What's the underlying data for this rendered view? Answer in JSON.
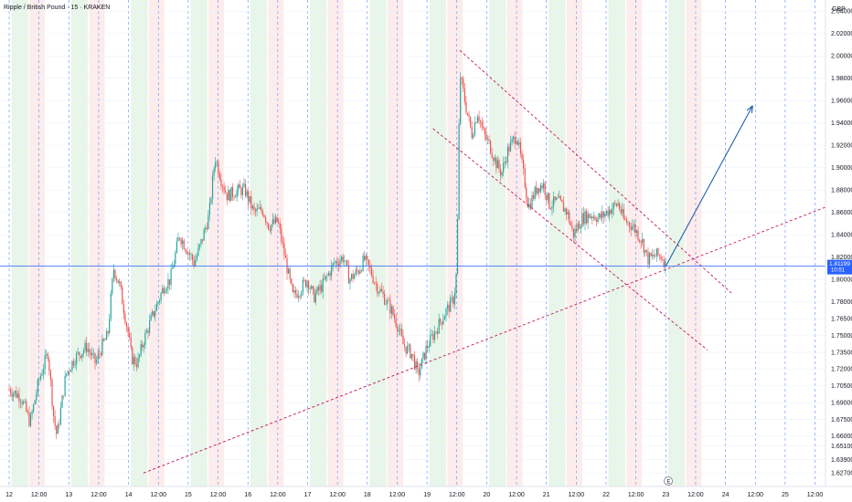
{
  "header": {
    "title": "Ripple / British Pound · 15 · KRAKEN",
    "currency": "GBP"
  },
  "price_badge": {
    "price": "1.81199",
    "countdown": "10:51",
    "color": "#2962ff"
  },
  "event_marker": "E",
  "colors": {
    "up": "#26a69a",
    "down": "#ef5350",
    "trendline": "#c2185b",
    "arrow": "#1f5faa",
    "grid_day": "#2962ff",
    "session_green": "#e8f5e9",
    "session_red": "#fdecec"
  },
  "chart_data": {
    "type": "candlestick",
    "title": "Ripple / British Pound · 15 · KRAKEN",
    "x_ticks": [
      "12",
      "12:00",
      "13",
      "12:00",
      "14",
      "12:00",
      "15",
      "12:00",
      "16",
      "12:00",
      "17",
      "12:00",
      "18",
      "12:00",
      "19",
      "12:00",
      "20",
      "12:00",
      "21",
      "12:00",
      "22",
      "12:00",
      "23",
      "12:00",
      "24",
      "12:00",
      "25",
      "12:00"
    ],
    "y_ticks": [
      "2.04000",
      "2.02000",
      "2.00000",
      "1.98000",
      "1.96000",
      "1.94000",
      "1.92000",
      "1.90000",
      "1.88000",
      "1.86000",
      "1.84000",
      "1.82000",
      "1.80000",
      "1.78000",
      "1.76500",
      "1.75000",
      "1.73500",
      "1.72000",
      "1.70500",
      "1.69000",
      "1.67500",
      "1.66000",
      "1.65100",
      "1.63900",
      "1.62700"
    ],
    "ylabel": "GBP",
    "ylim": [
      1.615,
      2.05
    ],
    "xlim_days": [
      0,
      14.6
    ],
    "close_path": [
      [
        0.0,
        1.702
      ],
      [
        0.2,
        1.695
      ],
      [
        0.35,
        1.672
      ],
      [
        0.5,
        1.71
      ],
      [
        0.65,
        1.735
      ],
      [
        0.75,
        1.675
      ],
      [
        0.8,
        1.66
      ],
      [
        0.95,
        1.715
      ],
      [
        1.1,
        1.73
      ],
      [
        1.3,
        1.74
      ],
      [
        1.45,
        1.725
      ],
      [
        1.55,
        1.74
      ],
      [
        1.65,
        1.75
      ],
      [
        1.75,
        1.81
      ],
      [
        1.85,
        1.795
      ],
      [
        2.0,
        1.75
      ],
      [
        2.05,
        1.73
      ],
      [
        2.15,
        1.725
      ],
      [
        2.25,
        1.745
      ],
      [
        2.35,
        1.76
      ],
      [
        2.6,
        1.795
      ],
      [
        2.7,
        1.8
      ],
      [
        2.85,
        1.84
      ],
      [
        2.95,
        1.83
      ],
      [
        3.1,
        1.815
      ],
      [
        3.2,
        1.83
      ],
      [
        3.35,
        1.858
      ],
      [
        3.45,
        1.91
      ],
      [
        3.55,
        1.89
      ],
      [
        3.65,
        1.875
      ],
      [
        3.85,
        1.88
      ],
      [
        3.95,
        1.88
      ],
      [
        4.1,
        1.86
      ],
      [
        4.25,
        1.862
      ],
      [
        4.35,
        1.848
      ],
      [
        4.5,
        1.852
      ],
      [
        4.65,
        1.812
      ],
      [
        4.75,
        1.785
      ],
      [
        4.85,
        1.79
      ],
      [
        5.0,
        1.8
      ],
      [
        5.1,
        1.784
      ],
      [
        5.25,
        1.795
      ],
      [
        5.45,
        1.815
      ],
      [
        5.6,
        1.82
      ],
      [
        5.7,
        1.8
      ],
      [
        5.85,
        1.808
      ],
      [
        5.95,
        1.818
      ],
      [
        6.05,
        1.808
      ],
      [
        6.15,
        1.795
      ],
      [
        6.25,
        1.787
      ],
      [
        6.4,
        1.773
      ],
      [
        6.5,
        1.76
      ],
      [
        6.6,
        1.742
      ],
      [
        6.75,
        1.733
      ],
      [
        6.85,
        1.715
      ],
      [
        7.0,
        1.74
      ],
      [
        7.1,
        1.75
      ],
      [
        7.2,
        1.76
      ],
      [
        7.3,
        1.77
      ],
      [
        7.45,
        1.783
      ],
      [
        7.5,
        1.81
      ],
      [
        7.55,
        1.985
      ],
      [
        7.65,
        1.955
      ],
      [
        7.75,
        1.93
      ],
      [
        7.85,
        1.95
      ],
      [
        7.95,
        1.93
      ],
      [
        8.05,
        1.92
      ],
      [
        8.15,
        1.905
      ],
      [
        8.25,
        1.895
      ],
      [
        8.35,
        1.915
      ],
      [
        8.5,
        1.93
      ],
      [
        8.6,
        1.9
      ],
      [
        8.7,
        1.865
      ],
      [
        8.85,
        1.883
      ],
      [
        8.95,
        1.885
      ],
      [
        9.05,
        1.867
      ],
      [
        9.2,
        1.87
      ],
      [
        9.35,
        1.86
      ],
      [
        9.45,
        1.84
      ],
      [
        9.6,
        1.855
      ],
      [
        9.75,
        1.858
      ],
      [
        9.9,
        1.855
      ],
      [
        10.05,
        1.862
      ],
      [
        10.2,
        1.868
      ],
      [
        10.3,
        1.853
      ],
      [
        10.45,
        1.848
      ],
      [
        10.6,
        1.835
      ],
      [
        10.7,
        1.818
      ],
      [
        10.85,
        1.822
      ],
      [
        10.95,
        1.82
      ],
      [
        11.0,
        1.812
      ]
    ],
    "indicators": [
      {
        "name": "",
        "points": [
          [
            2.25,
            1.627
          ],
          [
            14.6,
            1.884
          ]
        ]
      },
      {
        "name": "",
        "points": [
          [
            7.55,
            2.005
          ],
          [
            12.1,
            1.788
          ]
        ]
      },
      {
        "name": "",
        "points": [
          [
            7.1,
            1.935
          ],
          [
            11.7,
            1.737
          ]
        ]
      },
      {
        "name": "",
        "points": [
          [
            11.0,
            1.812
          ],
          [
            12.45,
            1.955
          ]
        ]
      }
    ],
    "grid": true,
    "legend": "none"
  }
}
